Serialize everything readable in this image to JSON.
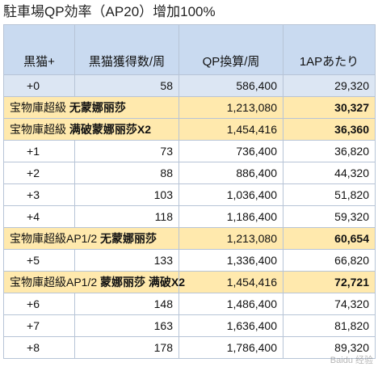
{
  "title": "駐車場QP効率（AP20）增加100%",
  "table": {
    "headers": [
      "黒猫+",
      "黒猫獲得数/周",
      "QP換算/周",
      "1APあたり"
    ],
    "rows": [
      {
        "type": "base",
        "label": "+0",
        "tag": "",
        "count": "58",
        "qp": "586,400",
        "per_ap": "29,320"
      },
      {
        "type": "np",
        "label": "宝物庫超級",
        "tag": "无蒙娜丽莎",
        "count": "",
        "qp": "1,213,080",
        "per_ap": "30,327"
      },
      {
        "type": "np",
        "label": "宝物庫超級",
        "tag": "满破蒙娜丽莎X2",
        "count": "",
        "qp": "1,454,416",
        "per_ap": "36,360"
      },
      {
        "type": "nor",
        "label": "+1",
        "tag": "",
        "count": "73",
        "qp": "736,400",
        "per_ap": "36,820"
      },
      {
        "type": "nor",
        "label": "+2",
        "tag": "",
        "count": "88",
        "qp": "886,400",
        "per_ap": "44,320"
      },
      {
        "type": "nor",
        "label": "+3",
        "tag": "",
        "count": "103",
        "qp": "1,036,400",
        "per_ap": "51,820"
      },
      {
        "type": "nor",
        "label": "+4",
        "tag": "",
        "count": "118",
        "qp": "1,186,400",
        "per_ap": "59,320"
      },
      {
        "type": "np",
        "label": "宝物庫超級AP1/2",
        "tag": "无蒙娜丽莎",
        "count": "",
        "qp": "1,213,080",
        "per_ap": "60,654"
      },
      {
        "type": "nor",
        "label": "+5",
        "tag": "",
        "count": "133",
        "qp": "1,336,400",
        "per_ap": "66,820"
      },
      {
        "type": "np",
        "label": "宝物庫超級AP1/2",
        "tag": "蒙娜丽莎 满破X2",
        "count": "",
        "qp": "1,454,416",
        "per_ap": "72,721"
      },
      {
        "type": "nor",
        "label": "+6",
        "tag": "",
        "count": "148",
        "qp": "1,486,400",
        "per_ap": "74,320"
      },
      {
        "type": "nor",
        "label": "+7",
        "tag": "",
        "count": "163",
        "qp": "1,636,400",
        "per_ap": "81,820"
      },
      {
        "type": "nor",
        "label": "+8",
        "tag": "",
        "count": "178",
        "qp": "1,786,400",
        "per_ap": "89,320"
      }
    ]
  },
  "watermark": "Baidu 经验"
}
